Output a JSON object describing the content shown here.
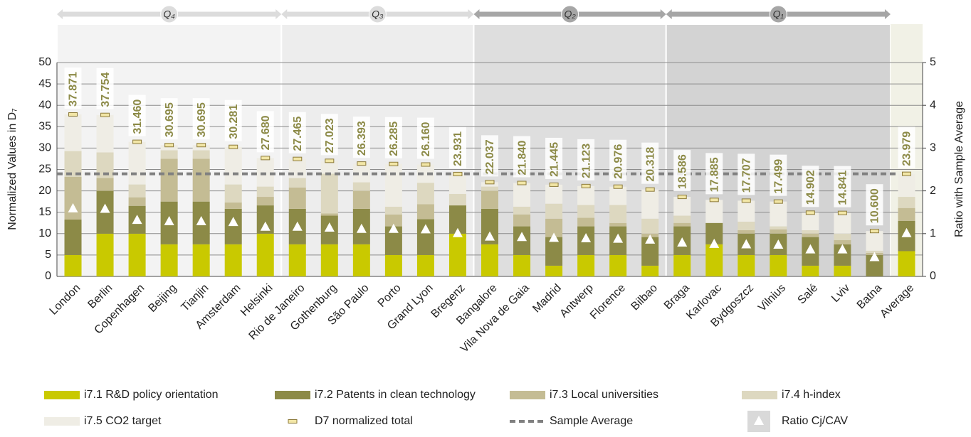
{
  "chart_data": {
    "type": "bar",
    "stacked": true,
    "y_label": "Normalized Values in D₇",
    "y2_label": "Ratio with Sample Average",
    "categories": [
      "London",
      "Berlin",
      "Copenhagen",
      "Beijing",
      "Tianjin",
      "Amsterdam",
      "Helsinki",
      "Rio de Janeiro",
      "Gothenburg",
      "São Paulo",
      "Porto",
      "Grand Lyon",
      "Bregenz",
      "Bangalore",
      "Vila Nova de Gaia",
      "Madrid",
      "Antwerp",
      "Florence",
      "Bilbao",
      "Braga",
      "Karlovac",
      "Bydgoszcz",
      "Vilnius",
      "Salé",
      "Lviv",
      "Batna",
      "Average"
    ],
    "groups": [
      {
        "label": "Q₄",
        "count": 7,
        "color": "#dcdcdc"
      },
      {
        "label": "Q₃",
        "count": 6,
        "color": "#dcdcdc"
      },
      {
        "label": "Q₂",
        "count": 6,
        "color": "#a6a6a6"
      },
      {
        "label": "Q₁",
        "count": 7,
        "color": "#a6a6a6"
      }
    ],
    "series": [
      {
        "name": "i7.1 R&D policy orientation",
        "color": "#c9c900",
        "values": [
          5,
          10,
          10,
          7.5,
          7.5,
          7.5,
          10,
          7.5,
          7.5,
          7.5,
          5,
          5,
          10,
          7.5,
          5,
          2.5,
          5,
          5,
          2.5,
          5,
          7.5,
          5,
          5,
          2.5,
          2.5,
          0,
          5.9
        ]
      },
      {
        "name": "i7.2 Patents in clean technology",
        "color": "#8c8a47",
        "values": [
          8.3,
          10,
          6.5,
          10,
          10,
          8.3,
          6.6,
          8.3,
          6.7,
          8.3,
          6.7,
          8.4,
          6.6,
          8.3,
          6.7,
          6.7,
          6.7,
          6.7,
          6.7,
          6.7,
          5,
          5,
          5,
          6.7,
          5,
          5,
          7.1
        ]
      },
      {
        "name": "i7.3 Local universities",
        "color": "#c4bc94",
        "values": [
          10,
          3,
          2,
          10,
          10,
          1.5,
          2,
          5,
          0.5,
          4.2,
          2.8,
          3.5,
          0,
          4.2,
          2.8,
          4.3,
          2,
          0.8,
          0.8,
          0.8,
          0,
          0.8,
          1,
          0.8,
          1,
          0.5,
          3
        ]
      },
      {
        "name": "i7.4 h-index",
        "color": "#ddd8c0",
        "values": [
          6,
          6,
          3,
          2,
          2,
          4.2,
          2.4,
          2.2,
          9.3,
          2,
          1.8,
          5,
          2.7,
          1,
          1.8,
          3.5,
          3,
          4.2,
          3.5,
          1.7,
          0,
          2,
          0.7,
          0.8,
          1.5,
          0.5,
          2.6
        ]
      },
      {
        "name": "i7.5 CO2 target",
        "color": "#efede5",
        "values": [
          8.57,
          8.75,
          9.96,
          1.2,
          1.2,
          8.78,
          6.68,
          4.47,
          3.02,
          4.39,
          9.99,
          4.26,
          4.63,
          1.04,
          5.54,
          4.45,
          4.42,
          4.28,
          6.82,
          4.39,
          5.39,
          4.91,
          5.8,
          4.1,
          4.84,
          4.6,
          5.38
        ]
      }
    ],
    "total": {
      "name": "D7 normalized total",
      "color": "#f2e6a6",
      "values": [
        37.871,
        37.754,
        31.46,
        30.695,
        30.695,
        30.281,
        27.68,
        27.465,
        27.023,
        26.393,
        26.285,
        26.16,
        23.931,
        22.037,
        21.84,
        21.445,
        21.123,
        20.976,
        20.318,
        18.586,
        17.885,
        17.707,
        17.499,
        14.902,
        14.841,
        10.6,
        23.979
      ],
      "value_labels": [
        "37.871",
        "37.754",
        "31.460",
        "30.695",
        "30.695",
        "30.281",
        "27.680",
        "27.465",
        "27.023",
        "26.393",
        "26.285",
        "26.160",
        "23.931",
        "22.037",
        "21.840",
        "21.445",
        "21.123",
        "20.976",
        "20.318",
        "18.586",
        "17.885",
        "17.707",
        "17.499",
        "14.902",
        "14.841",
        "10.600",
        "23.979"
      ]
    },
    "average_line": {
      "name": "Sample Average",
      "color": "#808080",
      "value": 23.979
    },
    "ratio": {
      "name": "Ratio Cj/CAV",
      "axis": "y2",
      "color": "#ffffff",
      "values": [
        1.58,
        1.57,
        1.31,
        1.28,
        1.28,
        1.26,
        1.15,
        1.15,
        1.13,
        1.1,
        1.1,
        1.09,
        1,
        0.92,
        0.91,
        0.89,
        0.88,
        0.87,
        0.85,
        0.78,
        0.75,
        0.74,
        0.73,
        0.62,
        0.62,
        0.44,
        1
      ]
    },
    "ylim": [
      0,
      50
    ],
    "yticks": [
      0,
      5,
      10,
      15,
      20,
      25,
      30,
      35,
      40,
      45,
      50
    ],
    "y2lim": [
      0,
      5
    ],
    "y2ticks": [
      0,
      1,
      2,
      3,
      4,
      5
    ],
    "grid": true
  }
}
